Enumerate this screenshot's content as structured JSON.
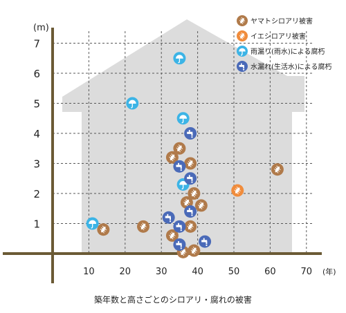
{
  "chart_data": {
    "type": "scatter",
    "title": "",
    "caption": "築年数と高さごとのシロアリ・腐れの被害",
    "xlabel": "(年)",
    "ylabel": "(m)",
    "xlim": [
      0,
      75
    ],
    "ylim": [
      0,
      7.5
    ],
    "x_ticks": [
      "10",
      "20",
      "30",
      "40",
      "50",
      "60",
      "70"
    ],
    "y_ticks": [
      "1",
      "2",
      "3",
      "4",
      "5",
      "6",
      "7"
    ],
    "grid": "dashed",
    "legend_position": "top-right",
    "series": [
      {
        "name": "ヤマトシロアリ被害",
        "color": "#b07a4a",
        "icon": "termite-icon",
        "points": [
          [
            14,
            0.8
          ],
          [
            25,
            0.9
          ],
          [
            33,
            3.2
          ],
          [
            35,
            3.5
          ],
          [
            38,
            3.0
          ],
          [
            37,
            1.7
          ],
          [
            39,
            2.0
          ],
          [
            41,
            1.6
          ],
          [
            38,
            0.9
          ],
          [
            33,
            0.6
          ],
          [
            36,
            0.05
          ],
          [
            39,
            0.1
          ],
          [
            62,
            2.8
          ]
        ]
      },
      {
        "name": "イエシロアリ被害",
        "color": "#f08c3c",
        "icon": "termite-icon",
        "points": [
          [
            51,
            2.1
          ]
        ]
      },
      {
        "name": "雨漏り(雨水)による腐朽",
        "color": "#3cb4e6",
        "icon": "umbrella-icon",
        "points": [
          [
            11,
            1.0
          ],
          [
            22,
            5.0
          ],
          [
            35,
            6.5
          ],
          [
            36,
            4.5
          ],
          [
            36,
            2.3
          ]
        ]
      },
      {
        "name": "水漏れ(生活水)による腐朽",
        "color": "#4a6ab8",
        "icon": "faucet-icon",
        "points": [
          [
            38,
            4.0
          ],
          [
            35,
            2.9
          ],
          [
            38,
            2.5
          ],
          [
            32,
            1.2
          ],
          [
            35,
            0.9
          ],
          [
            38,
            1.4
          ],
          [
            35,
            0.3
          ],
          [
            42,
            0.4
          ]
        ]
      }
    ]
  }
}
